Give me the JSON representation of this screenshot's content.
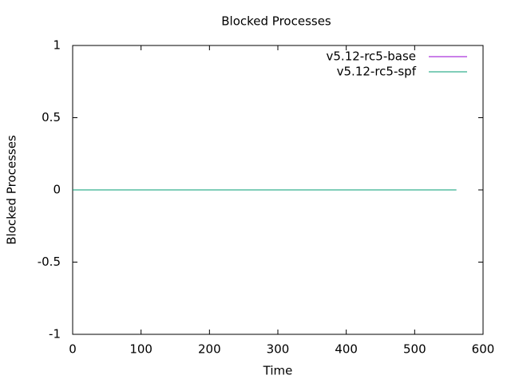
{
  "chart_data": {
    "type": "line",
    "title": "Blocked Processes",
    "x_label": "Time",
    "y_label": "Blocked Processes",
    "x": [
      0,
      561
    ],
    "series": [
      {
        "name": "v5.12-rc5-base",
        "color": "#9400d3",
        "values": [
          0,
          0
        ]
      },
      {
        "name": "v5.12-rc5-spf",
        "color": "#009e73",
        "values": [
          0,
          0
        ]
      }
    ],
    "xlim": [
      0,
      600
    ],
    "xticks": [
      0,
      100,
      200,
      300,
      400,
      500,
      600
    ],
    "ylim": [
      -1,
      1
    ],
    "yticks": [
      -1,
      -0.5,
      0,
      0.5,
      1
    ],
    "grid": false,
    "legend": "top-right"
  }
}
